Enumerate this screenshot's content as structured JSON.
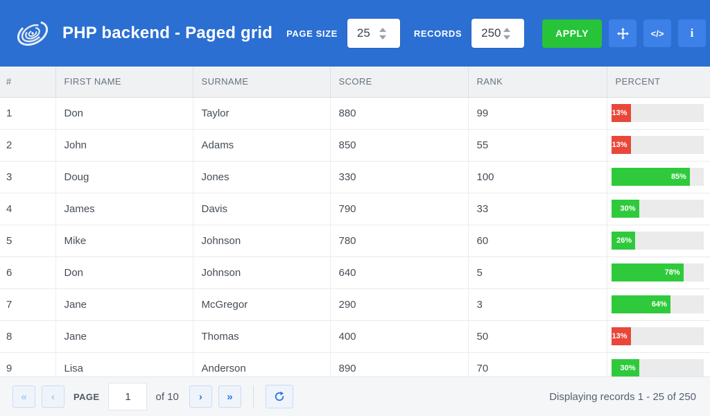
{
  "header": {
    "title": "PHP backend - Paged grid",
    "page_size_label": "PAGE SIZE",
    "page_size_value": "25",
    "records_label": "RECORDS",
    "records_value": "250",
    "apply_label": "APPLY",
    "code_icon_glyph": "</>",
    "info_icon_glyph": "i"
  },
  "colors": {
    "topbar": "#2b6fd3",
    "icon_button": "#3d80e8",
    "apply_green": "#27c338",
    "red": "#e8473a",
    "green": "#2fca3c",
    "bar_track": "#ebebeb"
  },
  "table": {
    "columns": [
      "#",
      "FIRST NAME",
      "SURNAME",
      "SCORE",
      "RANK",
      "PERCENT"
    ],
    "rows": [
      {
        "num": "1",
        "first": "Don",
        "surname": "Taylor",
        "score": "880",
        "rank": "99",
        "percent": 13,
        "percent_label": "13%",
        "bar": "red"
      },
      {
        "num": "2",
        "first": "John",
        "surname": "Adams",
        "score": "850",
        "rank": "55",
        "percent": 13,
        "percent_label": "13%",
        "bar": "red"
      },
      {
        "num": "3",
        "first": "Doug",
        "surname": "Jones",
        "score": "330",
        "rank": "100",
        "percent": 85,
        "percent_label": "85%",
        "bar": "green"
      },
      {
        "num": "4",
        "first": "James",
        "surname": "Davis",
        "score": "790",
        "rank": "33",
        "percent": 30,
        "percent_label": "30%",
        "bar": "green"
      },
      {
        "num": "5",
        "first": "Mike",
        "surname": "Johnson",
        "score": "780",
        "rank": "60",
        "percent": 26,
        "percent_label": "26%",
        "bar": "green"
      },
      {
        "num": "6",
        "first": "Don",
        "surname": "Johnson",
        "score": "640",
        "rank": "5",
        "percent": 78,
        "percent_label": "78%",
        "bar": "green"
      },
      {
        "num": "7",
        "first": "Jane",
        "surname": "McGregor",
        "score": "290",
        "rank": "3",
        "percent": 64,
        "percent_label": "64%",
        "bar": "green"
      },
      {
        "num": "8",
        "first": "Jane",
        "surname": "Thomas",
        "score": "400",
        "rank": "50",
        "percent": 13,
        "percent_label": "13%",
        "bar": "red"
      },
      {
        "num": "9",
        "first": "Lisa",
        "surname": "Anderson",
        "score": "890",
        "rank": "70",
        "percent": 30,
        "percent_label": "30%",
        "bar": "green"
      }
    ]
  },
  "footer": {
    "first_glyph": "«",
    "prev_glyph": "‹",
    "page_label": "PAGE",
    "page_value": "1",
    "of_label": "of 10",
    "next_glyph": "›",
    "last_glyph": "»",
    "status": "Displaying records 1 - 25 of 250"
  }
}
